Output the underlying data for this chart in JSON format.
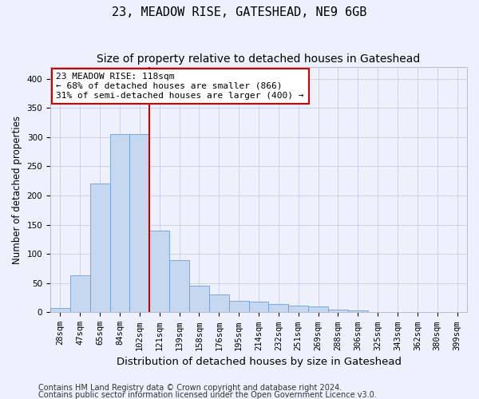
{
  "title": "23, MEADOW RISE, GATESHEAD, NE9 6GB",
  "subtitle": "Size of property relative to detached houses in Gateshead",
  "xlabel": "Distribution of detached houses by size in Gateshead",
  "ylabel": "Number of detached properties",
  "footnote1": "Contains HM Land Registry data © Crown copyright and database right 2024.",
  "footnote2": "Contains public sector information licensed under the Open Government Licence v3.0.",
  "bin_labels": [
    "28sqm",
    "47sqm",
    "65sqm",
    "84sqm",
    "102sqm",
    "121sqm",
    "139sqm",
    "158sqm",
    "176sqm",
    "195sqm",
    "214sqm",
    "232sqm",
    "251sqm",
    "269sqm",
    "288sqm",
    "306sqm",
    "325sqm",
    "343sqm",
    "362sqm",
    "380sqm",
    "399sqm"
  ],
  "bar_values": [
    8,
    63,
    220,
    305,
    305,
    140,
    90,
    46,
    30,
    20,
    18,
    14,
    11,
    10,
    5,
    3,
    0,
    0,
    0,
    0,
    0
  ],
  "bar_color": "#c5d8f0",
  "bar_edge_color": "#6b9fd4",
  "vline_x": 5,
  "vline_color": "#cc0000",
  "annotation_text": "23 MEADOW RISE: 118sqm\n← 68% of detached houses are smaller (866)\n31% of semi-detached houses are larger (400) →",
  "annotation_box_color": "white",
  "annotation_box_edgecolor": "#cc0000",
  "ylim": [
    0,
    420
  ],
  "yticks": [
    0,
    50,
    100,
    150,
    200,
    250,
    300,
    350,
    400
  ],
  "background_color": "#eef0fb",
  "grid_color": "#c8cce8",
  "title_fontsize": 11,
  "subtitle_fontsize": 10,
  "xlabel_fontsize": 9.5,
  "ylabel_fontsize": 8.5,
  "tick_fontsize": 7.5,
  "annotation_fontsize": 8,
  "footnote_fontsize": 7
}
